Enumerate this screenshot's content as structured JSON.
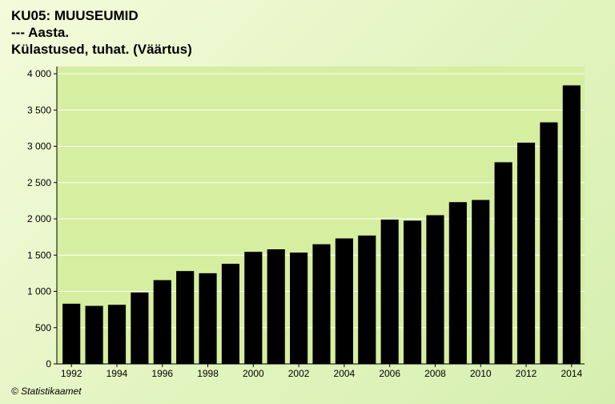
{
  "title_lines": [
    "KU05: MUUSEUMID",
    "--- Aasta.",
    "Külastused, tuhat. (Väärtus)"
  ],
  "footer": "© Statistikaamet",
  "colors": {
    "plot_background": "#d6ee9f",
    "bar": "#000000",
    "grid": "#ffffff"
  },
  "chart_data": {
    "type": "bar",
    "title": "KU05: MUUSEUMID",
    "subtitle": "Külastused, tuhat. (Väärtus)",
    "xlabel": "",
    "ylabel": "",
    "grid": true,
    "legend": "none",
    "ylim": [
      0,
      4000
    ],
    "y_ticks": [
      0,
      500,
      1000,
      1500,
      2000,
      2500,
      3000,
      3500,
      4000
    ],
    "y_tick_labels": [
      "0",
      "500",
      "1 000",
      "1 500",
      "2 000",
      "2 500",
      "3 000",
      "3 500",
      "4 000"
    ],
    "categories": [
      "1992",
      "1993",
      "1994",
      "1995",
      "1996",
      "1997",
      "1998",
      "1999",
      "2000",
      "2001",
      "2002",
      "2003",
      "2004",
      "2005",
      "2006",
      "2007",
      "2008",
      "2009",
      "2010",
      "2011",
      "2012",
      "2013",
      "2014"
    ],
    "x_tick_labels": [
      "1992",
      "1994",
      "1996",
      "1998",
      "2000",
      "2002",
      "2004",
      "2006",
      "2008",
      "2010",
      "2012",
      "2014"
    ],
    "values": [
      830,
      800,
      815,
      985,
      1155,
      1280,
      1250,
      1380,
      1545,
      1580,
      1535,
      1650,
      1730,
      1770,
      1990,
      1975,
      2050,
      2230,
      2260,
      2780,
      3050,
      3330,
      3840
    ]
  }
}
